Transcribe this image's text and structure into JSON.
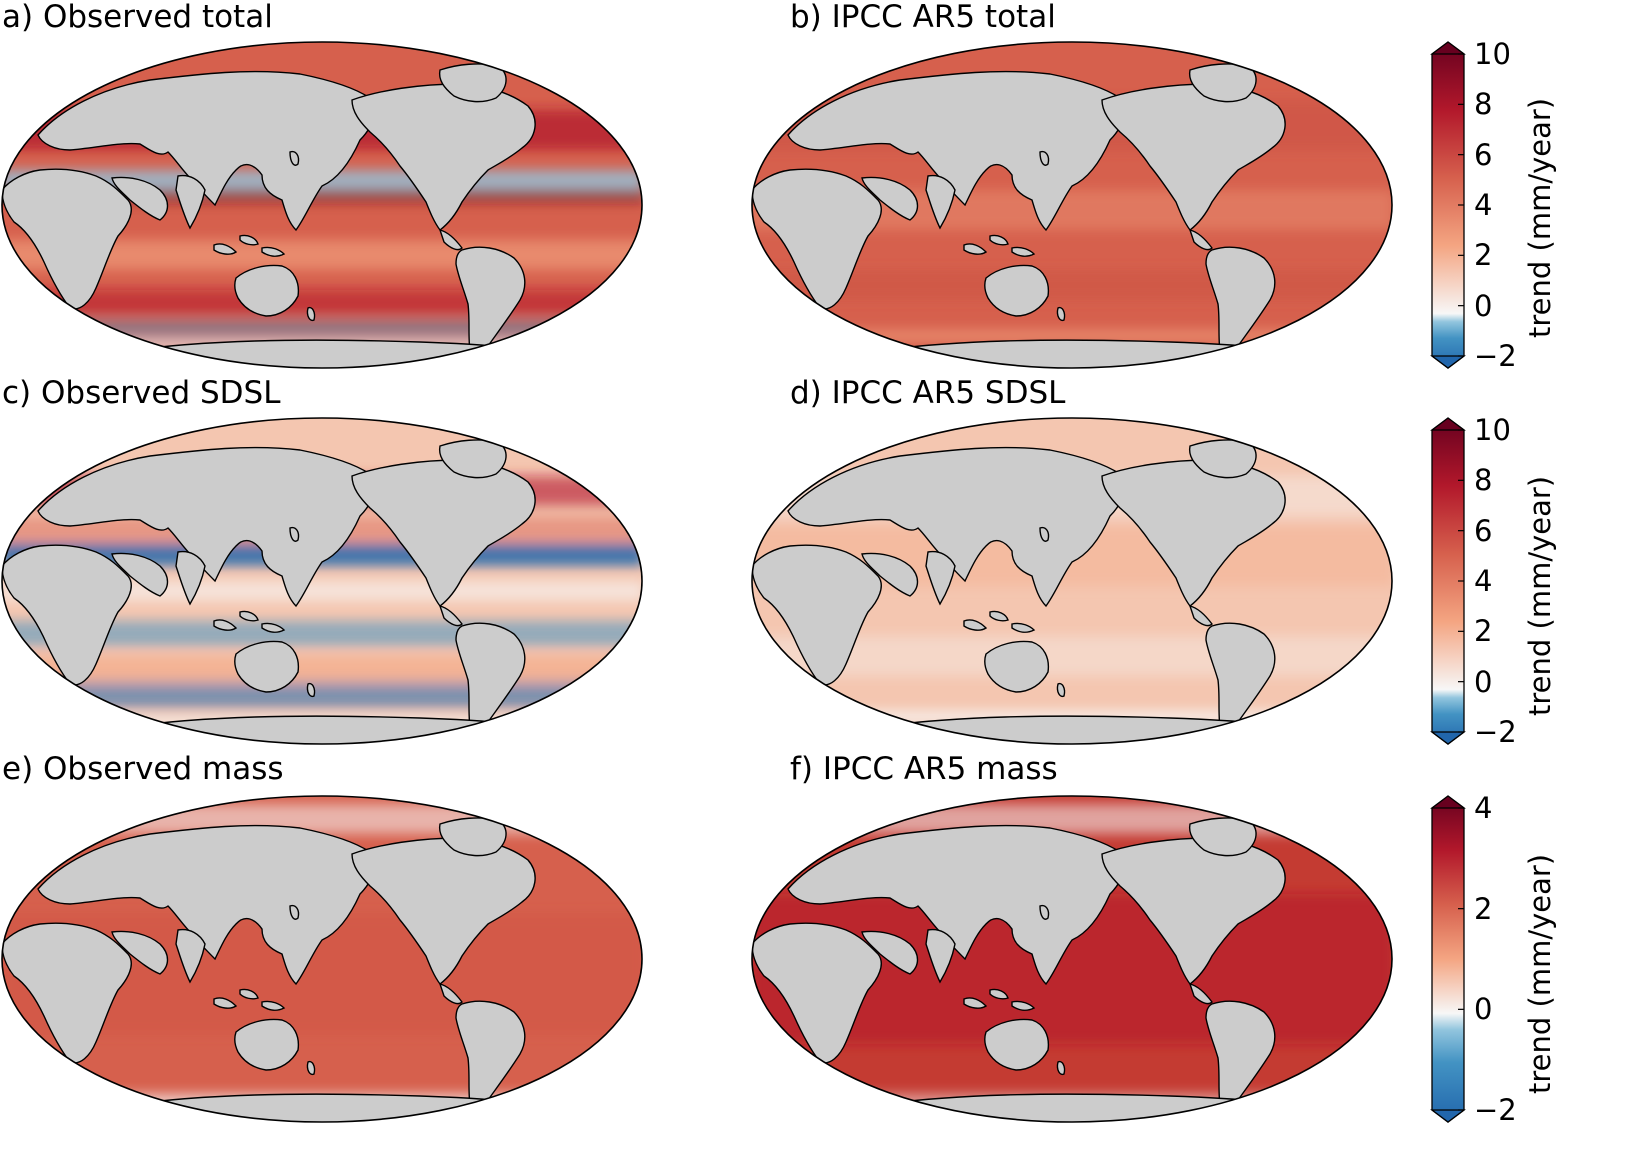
{
  "panels": [
    {
      "id": "a",
      "title": "a) Observed total",
      "field": "obs_total"
    },
    {
      "id": "b",
      "title": "b) IPCC AR5 total",
      "field": "ar5_total"
    },
    {
      "id": "c",
      "title": "c) Observed SDSL",
      "field": "obs_sdsl"
    },
    {
      "id": "d",
      "title": "d) IPCC AR5 SDSL",
      "field": "ar5_sdsl"
    },
    {
      "id": "e",
      "title": "e) Observed mass",
      "field": "obs_mass"
    },
    {
      "id": "f",
      "title": "f) IPCC AR5 mass",
      "field": "ar5_mass"
    }
  ],
  "colorbars": [
    {
      "label": "trend (mm/year)",
      "min": -2,
      "max": 10,
      "ticks": [
        "−2",
        "0",
        "2",
        "4",
        "6",
        "8",
        "10"
      ]
    },
    {
      "label": "trend (mm/year)",
      "min": -2,
      "max": 10,
      "ticks": [
        "−2",
        "0",
        "2",
        "4",
        "6",
        "8",
        "10"
      ]
    },
    {
      "label": "trend (mm/year)",
      "min": -2,
      "max": 4,
      "ticks": [
        "−2",
        "0",
        "2",
        "4"
      ]
    }
  ],
  "colors": {
    "land": "#cccccc",
    "coast": "#000000",
    "cmap": [
      "#2166ac",
      "#4393c3",
      "#92c5de",
      "#f7f7f7",
      "#f4a582",
      "#d6604d",
      "#b2182b",
      "#67001f"
    ]
  }
}
